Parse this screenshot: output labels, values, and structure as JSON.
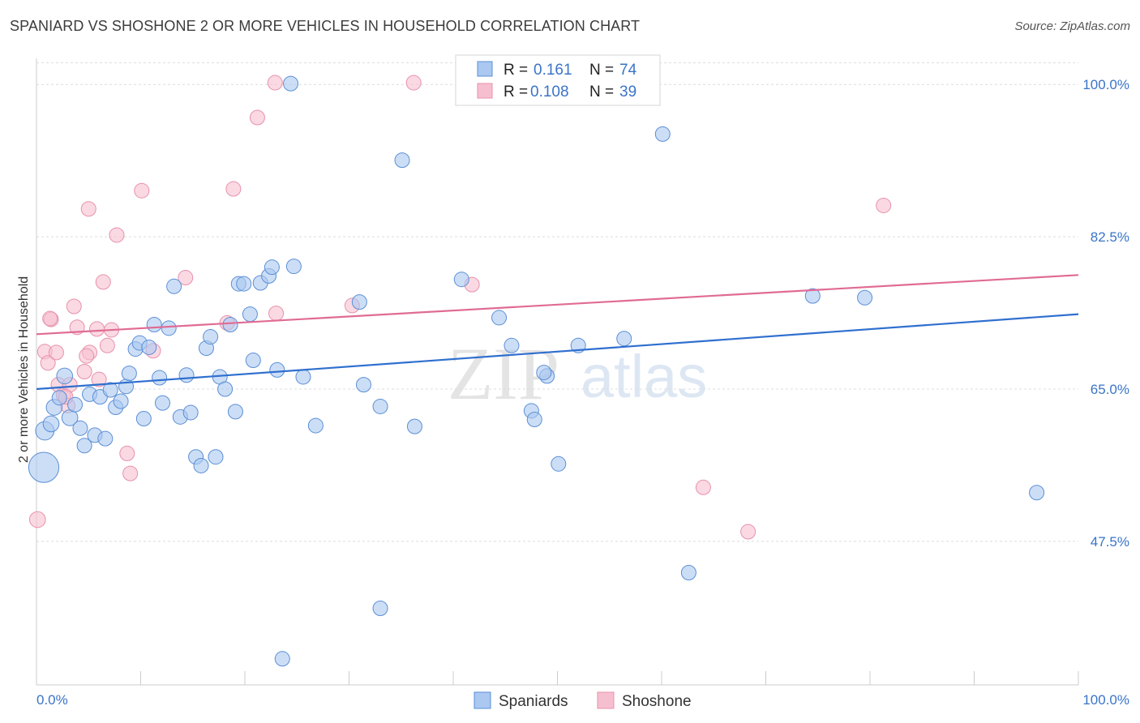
{
  "header": {
    "title": "SPANIARD VS SHOSHONE 2 OR MORE VEHICLES IN HOUSEHOLD CORRELATION CHART",
    "source": "Source: ZipAtlas.com"
  },
  "legend_top": {
    "rows": [
      {
        "r_label": "R =",
        "r_value": "0.161",
        "n_label": "N =",
        "n_value": "74"
      },
      {
        "r_label": "R =",
        "r_value": "0.108",
        "n_label": "N =",
        "n_value": "39"
      }
    ]
  },
  "legend_bottom": [
    "Spaniards",
    "Shoshone"
  ],
  "watermark": {
    "zip": "ZIP",
    "atlas": "atlas"
  },
  "colors": {
    "blue_fill": "#aac8f0",
    "blue_stroke": "#5b8fd6",
    "blue_line": "#2f6fcf",
    "pink_fill": "#f6bfd0",
    "pink_stroke": "#e890ab",
    "pink_line": "#e06b93",
    "tick_text": "#3a74c8",
    "grid": "#dcdcdc"
  },
  "chart_data": {
    "type": "scatter",
    "title": "SPANIARD VS SHOSHONE 2 OR MORE VEHICLES IN HOUSEHOLD CORRELATION CHART",
    "xlabel": "",
    "ylabel": "2 or more Vehicles in Household",
    "xlim": [
      0,
      100
    ],
    "ylim": [
      31,
      103
    ],
    "x_tick_labels": [
      "0.0%",
      "100.0%"
    ],
    "y_ticks": [
      47.5,
      65.0,
      82.5,
      100.0
    ],
    "y_tick_labels": [
      "47.5%",
      "65.0%",
      "82.5%",
      "100.0%"
    ],
    "series": [
      {
        "name": "Spaniards",
        "R": 0.161,
        "N": 74,
        "trend": {
          "x": [
            0,
            100
          ],
          "y": [
            65.0,
            73.6
          ]
        },
        "points": [
          [
            0.7,
            56.0,
            22
          ],
          [
            0.8,
            60.2,
            13
          ],
          [
            1.4,
            61.0,
            11
          ],
          [
            1.7,
            62.9,
            11
          ],
          [
            2.2,
            64.0,
            10
          ],
          [
            2.7,
            66.5,
            11
          ],
          [
            3.2,
            61.7,
            11
          ],
          [
            3.7,
            63.2,
            10
          ],
          [
            4.2,
            60.5,
            10
          ],
          [
            4.6,
            58.5,
            10
          ],
          [
            5.1,
            64.4,
            10
          ],
          [
            5.6,
            59.7,
            10
          ],
          [
            6.1,
            64.1,
            10
          ],
          [
            6.6,
            59.3,
            10
          ],
          [
            7.1,
            64.9,
            10
          ],
          [
            7.6,
            62.9,
            10
          ],
          [
            8.1,
            63.6,
            10
          ],
          [
            8.6,
            65.3,
            10
          ],
          [
            8.9,
            66.8,
            10
          ],
          [
            9.5,
            69.6,
            10
          ],
          [
            9.9,
            70.3,
            10
          ],
          [
            10.3,
            61.6,
            10
          ],
          [
            10.8,
            69.8,
            10
          ],
          [
            11.3,
            72.4,
            10
          ],
          [
            11.8,
            66.3,
            10
          ],
          [
            12.1,
            63.4,
            10
          ],
          [
            12.7,
            72.0,
            10
          ],
          [
            13.2,
            76.8,
            10
          ],
          [
            13.8,
            61.8,
            10
          ],
          [
            14.4,
            66.6,
            10
          ],
          [
            14.8,
            62.3,
            10
          ],
          [
            15.3,
            57.2,
            10
          ],
          [
            15.8,
            56.2,
            10
          ],
          [
            16.3,
            69.7,
            10
          ],
          [
            16.7,
            71.0,
            10
          ],
          [
            17.2,
            57.2,
            10
          ],
          [
            17.6,
            66.4,
            10
          ],
          [
            18.1,
            65.0,
            10
          ],
          [
            18.6,
            72.4,
            10
          ],
          [
            19.1,
            62.4,
            10
          ],
          [
            19.4,
            77.1,
            10
          ],
          [
            19.9,
            77.1,
            10
          ],
          [
            20.5,
            73.6,
            10
          ],
          [
            20.8,
            68.3,
            10
          ],
          [
            21.5,
            77.2,
            10
          ],
          [
            22.3,
            78.0,
            10
          ],
          [
            22.6,
            79.0,
            10
          ],
          [
            23.1,
            67.2,
            10
          ],
          [
            23.6,
            34.0,
            10
          ],
          [
            24.4,
            100.1,
            10
          ],
          [
            24.7,
            79.1,
            10
          ],
          [
            25.6,
            66.4,
            10
          ],
          [
            26.8,
            60.8,
            10
          ],
          [
            31.0,
            75.0,
            10
          ],
          [
            31.4,
            65.5,
            10
          ],
          [
            33.0,
            39.8,
            10
          ],
          [
            33.0,
            63.0,
            10
          ],
          [
            35.1,
            91.3,
            10
          ],
          [
            36.3,
            60.7,
            10
          ],
          [
            40.8,
            77.6,
            10
          ],
          [
            44.4,
            73.2,
            10
          ],
          [
            45.6,
            70.0,
            10
          ],
          [
            47.5,
            62.5,
            10
          ],
          [
            47.8,
            61.5,
            10
          ],
          [
            49.0,
            66.5,
            10
          ],
          [
            50.1,
            56.4,
            10
          ],
          [
            52.0,
            70.0,
            10
          ],
          [
            56.4,
            70.8,
            10
          ],
          [
            60.1,
            94.3,
            10
          ],
          [
            62.6,
            43.9,
            10
          ],
          [
            74.5,
            75.7,
            10
          ],
          [
            79.5,
            75.5,
            10
          ],
          [
            96.0,
            53.1,
            10
          ],
          [
            48.7,
            66.9,
            10
          ]
        ]
      },
      {
        "name": "Shoshone",
        "R": 0.108,
        "N": 39,
        "trend": {
          "x": [
            0,
            100
          ],
          "y": [
            71.3,
            78.1
          ]
        },
        "points": [
          [
            0.1,
            50.0,
            11
          ],
          [
            0.8,
            69.3,
            10
          ],
          [
            1.1,
            68.0,
            10
          ],
          [
            1.4,
            73.0,
            10
          ],
          [
            1.9,
            69.2,
            10
          ],
          [
            2.1,
            65.5,
            10
          ],
          [
            2.6,
            64.3,
            10
          ],
          [
            3.0,
            63.1,
            10
          ],
          [
            3.2,
            65.5,
            10
          ],
          [
            3.6,
            74.5,
            10
          ],
          [
            3.9,
            72.1,
            10
          ],
          [
            4.6,
            67.0,
            10
          ],
          [
            5.0,
            85.7,
            10
          ],
          [
            5.1,
            69.2,
            10
          ],
          [
            5.8,
            71.9,
            10
          ],
          [
            6.0,
            66.1,
            10
          ],
          [
            6.4,
            77.3,
            10
          ],
          [
            6.8,
            70.0,
            10
          ],
          [
            7.2,
            71.8,
            10
          ],
          [
            7.7,
            82.7,
            10
          ],
          [
            8.7,
            57.6,
            10
          ],
          [
            9.0,
            55.3,
            10
          ],
          [
            10.1,
            87.8,
            10
          ],
          [
            11.2,
            69.4,
            10
          ],
          [
            14.3,
            77.8,
            10
          ],
          [
            18.3,
            72.6,
            10
          ],
          [
            18.9,
            88.0,
            10
          ],
          [
            21.2,
            96.2,
            10
          ],
          [
            22.9,
            100.2,
            10
          ],
          [
            23.0,
            73.7,
            10
          ],
          [
            30.3,
            74.6,
            10
          ],
          [
            36.2,
            100.2,
            10
          ],
          [
            41.8,
            77.0,
            10
          ],
          [
            64.0,
            53.7,
            10
          ],
          [
            68.3,
            48.6,
            10
          ],
          [
            81.3,
            86.1,
            10
          ],
          [
            1.3,
            73.1,
            10
          ],
          [
            2.8,
            64.1,
            10
          ],
          [
            4.8,
            68.8,
            10
          ]
        ]
      }
    ]
  }
}
